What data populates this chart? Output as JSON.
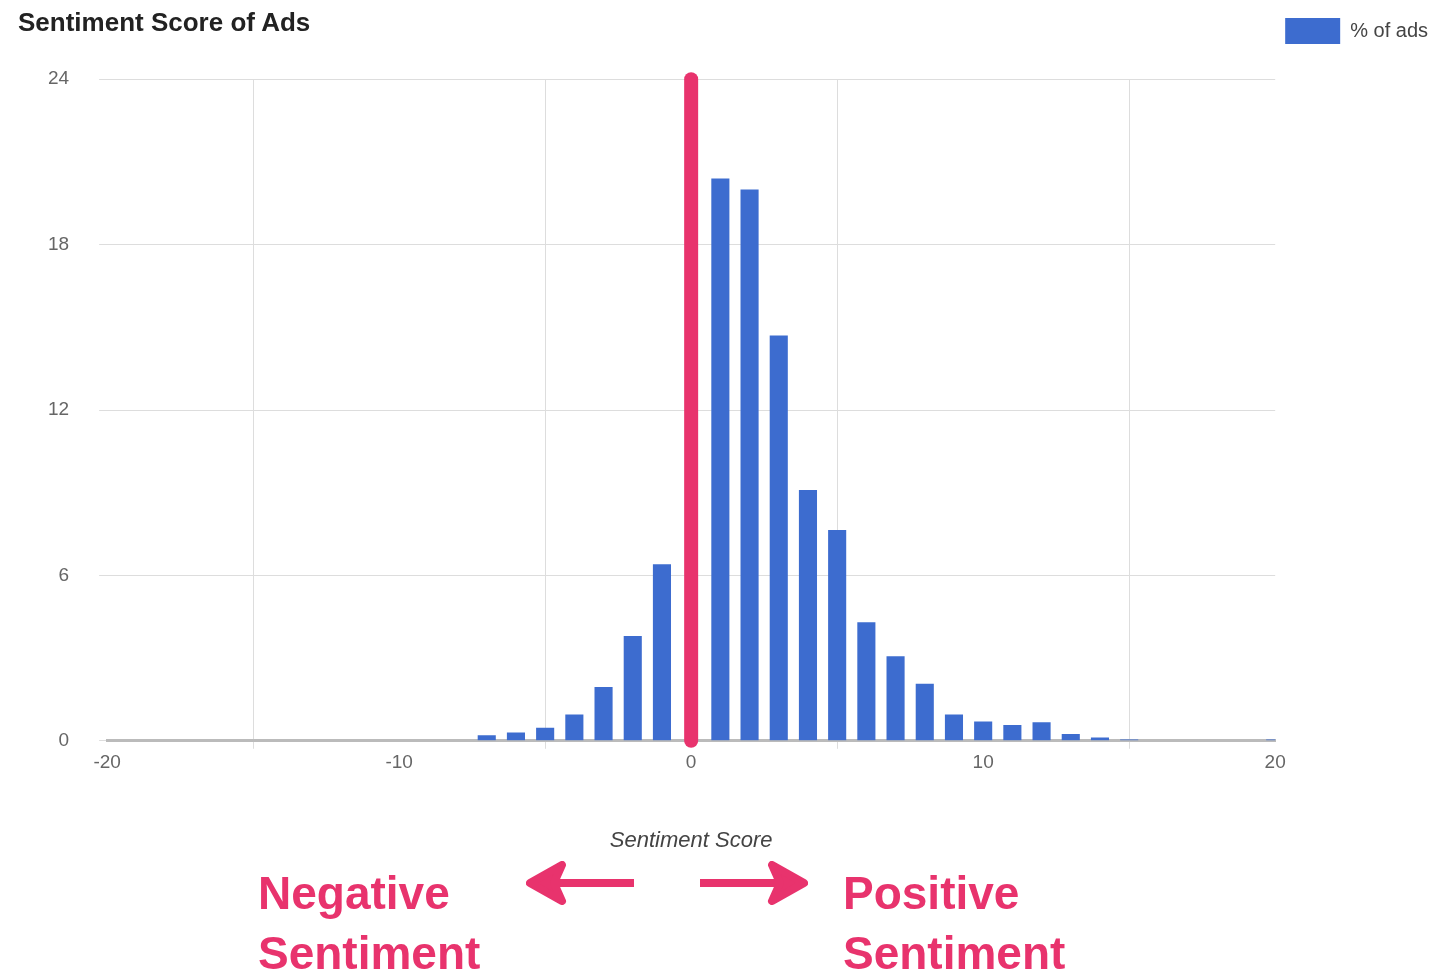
{
  "chart_data": {
    "type": "bar",
    "title": "Sentiment Score of Ads",
    "xlabel": "Sentiment Score",
    "x": [
      -7,
      -6,
      -5,
      -4,
      -3,
      -2,
      -1,
      0,
      1,
      2,
      3,
      4,
      5,
      6,
      7,
      8,
      9,
      10,
      11,
      12,
      13,
      14,
      15,
      16,
      17,
      18,
      19,
      20
    ],
    "series": [
      {
        "name": "% of ads",
        "color": "#3d6ccf",
        "values": [
          0.2,
          0.3,
          0.47,
          0.95,
          1.95,
          3.8,
          6.4,
          null,
          20.4,
          20.0,
          14.7,
          9.1,
          7.65,
          4.3,
          3.07,
          2.07,
          0.95,
          0.7,
          0.57,
          0.67,
          0.25,
          0.12,
          0.05,
          null,
          null,
          null,
          null,
          0.05
        ]
      }
    ],
    "xlim": [
      -20,
      20
    ],
    "xticks": [
      -20,
      -10,
      0,
      10,
      20
    ],
    "ylim": [
      0,
      24
    ],
    "yticks": [
      0,
      6,
      12,
      18,
      24
    ],
    "grid": true,
    "legend": "top right",
    "ref_lines": [
      {
        "axis": "x",
        "value": 0,
        "color": "#e8336d"
      }
    ],
    "annotations": [
      "Negative Sentiment",
      "Positive Sentiment"
    ]
  }
}
